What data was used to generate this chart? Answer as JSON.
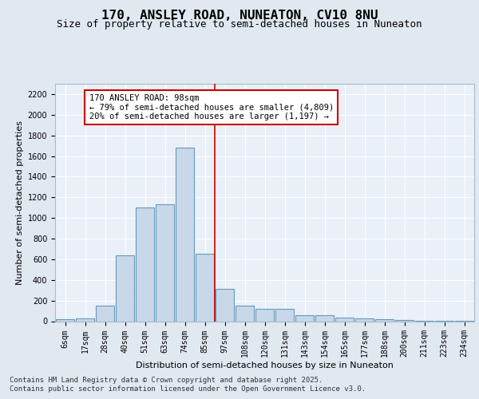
{
  "title_line1": "170, ANSLEY ROAD, NUNEATON, CV10 8NU",
  "title_line2": "Size of property relative to semi-detached houses in Nuneaton",
  "xlabel": "Distribution of semi-detached houses by size in Nuneaton",
  "ylabel": "Number of semi-detached properties",
  "categories": [
    "6sqm",
    "17sqm",
    "28sqm",
    "40sqm",
    "51sqm",
    "63sqm",
    "74sqm",
    "85sqm",
    "97sqm",
    "108sqm",
    "120sqm",
    "131sqm",
    "143sqm",
    "154sqm",
    "165sqm",
    "177sqm",
    "188sqm",
    "200sqm",
    "211sqm",
    "223sqm",
    "234sqm"
  ],
  "values": [
    20,
    30,
    150,
    640,
    1100,
    1130,
    1680,
    650,
    310,
    150,
    120,
    120,
    55,
    55,
    35,
    30,
    20,
    10,
    2,
    5,
    2
  ],
  "bar_color": "#c8d8e8",
  "bar_edge_color": "#6699bb",
  "bar_edge_width": 0.8,
  "vline_color": "#cc0000",
  "vline_x": 7.5,
  "annotation_text": "170 ANSLEY ROAD: 98sqm\n← 79% of semi-detached houses are smaller (4,809)\n20% of semi-detached houses are larger (1,197) →",
  "annotation_box_color": "#ffffff",
  "annotation_box_edge_color": "#cc0000",
  "ylim": [
    0,
    2300
  ],
  "yticks": [
    0,
    200,
    400,
    600,
    800,
    1000,
    1200,
    1400,
    1600,
    1800,
    2000,
    2200
  ],
  "background_color": "#e0e8f0",
  "plot_area_color": "#eaf0f8",
  "grid_color": "#ffffff",
  "footnote_line1": "Contains HM Land Registry data © Crown copyright and database right 2025.",
  "footnote_line2": "Contains public sector information licensed under the Open Government Licence v3.0.",
  "title_fontsize": 11.5,
  "subtitle_fontsize": 9,
  "axis_label_fontsize": 8,
  "tick_fontsize": 7,
  "annotation_fontsize": 7.5,
  "footnote_fontsize": 6.5
}
